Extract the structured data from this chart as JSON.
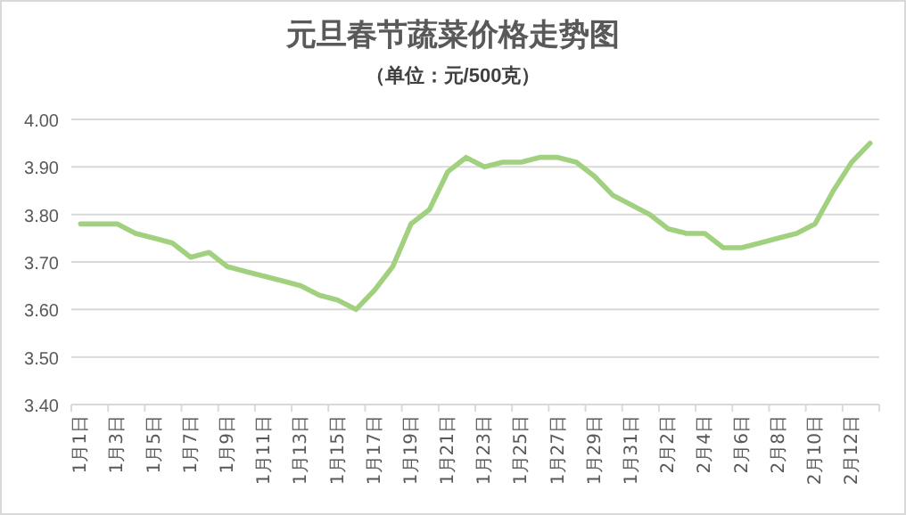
{
  "chart_data": {
    "type": "line",
    "title": "元旦春节蔬菜价格走势图",
    "subtitle": "（单位：元/500克）",
    "categories": [
      "1月1日",
      null,
      "1月3日",
      null,
      "1月5日",
      null,
      "1月7日",
      null,
      "1月9日",
      null,
      "1月11日",
      null,
      "1月13日",
      null,
      "1月15日",
      null,
      "1月17日",
      null,
      "1月19日",
      null,
      "1月21日",
      null,
      "1月23日",
      null,
      "1月25日",
      null,
      "1月27日",
      null,
      "1月29日",
      null,
      "1月31日",
      null,
      "2月2日",
      null,
      "2月4日",
      null,
      "2月6日",
      null,
      "2月8日",
      null,
      "2月10日",
      null,
      "2月12日",
      null
    ],
    "series": [
      {
        "color": "#a1d07e",
        "values": [
          3.78,
          3.78,
          3.78,
          3.76,
          3.75,
          3.74,
          3.71,
          3.72,
          3.69,
          3.68,
          3.67,
          3.66,
          3.65,
          3.63,
          3.62,
          3.6,
          3.64,
          3.69,
          3.78,
          3.81,
          3.89,
          3.92,
          3.9,
          3.91,
          3.91,
          3.92,
          3.92,
          3.91,
          3.88,
          3.84,
          3.82,
          3.8,
          3.77,
          3.76,
          3.76,
          3.73,
          3.73,
          3.74,
          3.75,
          3.76,
          3.78,
          3.85,
          3.91,
          3.95
        ]
      }
    ],
    "ylim": [
      3.4,
      4.0
    ],
    "yticks": [
      {
        "value": 3.4,
        "label": "3.40"
      },
      {
        "value": 3.5,
        "label": "3.50"
      },
      {
        "value": 3.6,
        "label": "3.60"
      },
      {
        "value": 3.7,
        "label": "3.70"
      },
      {
        "value": 3.8,
        "label": "3.80"
      },
      {
        "value": 3.9,
        "label": "3.90"
      },
      {
        "value": 4.0,
        "label": "4.00"
      }
    ],
    "grid": "y"
  }
}
